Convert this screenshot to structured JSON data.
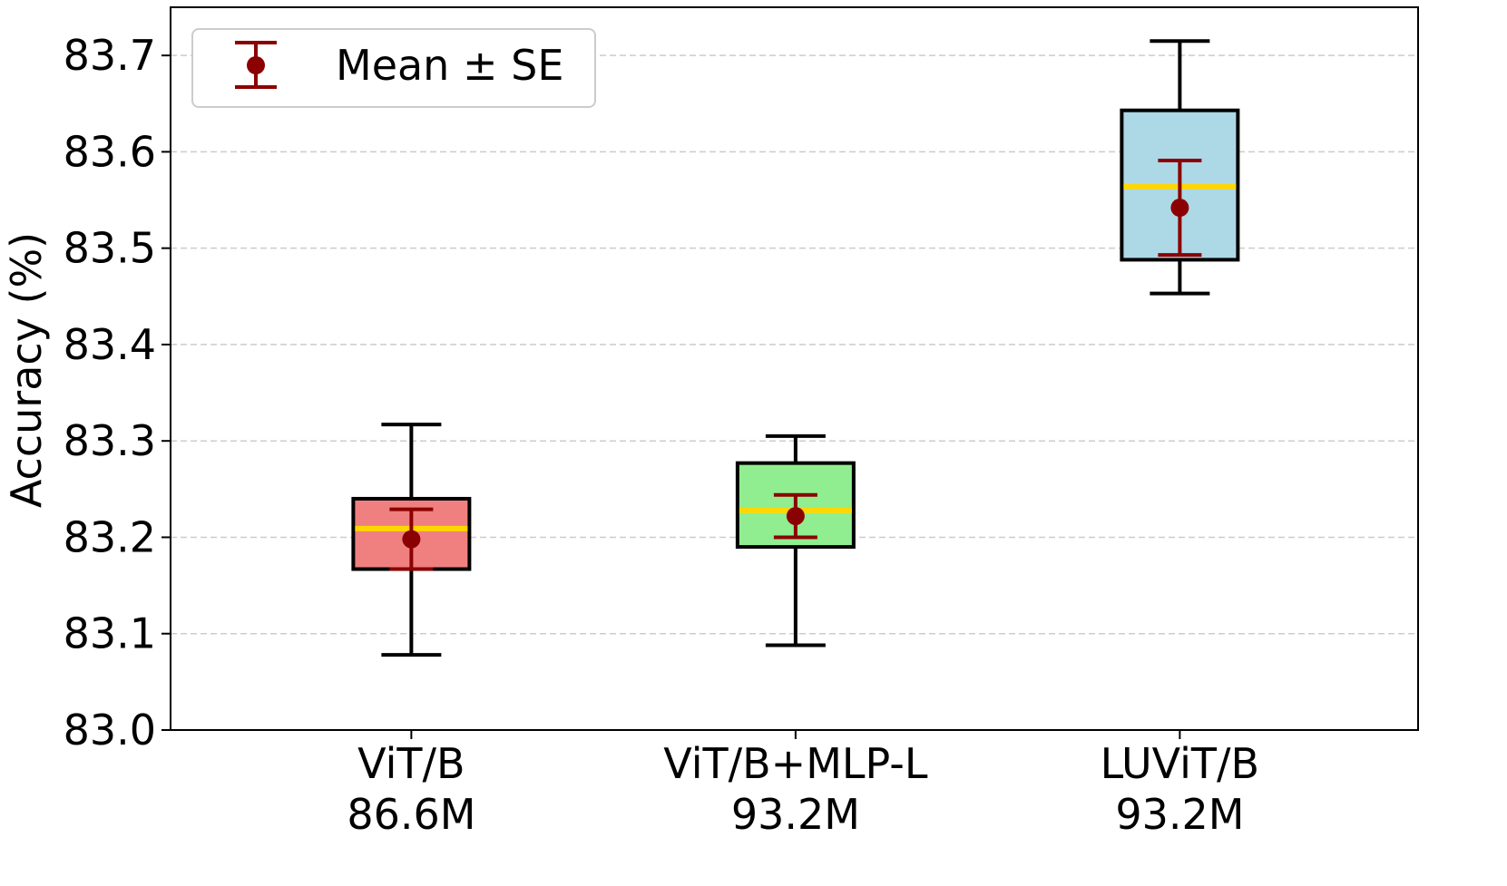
{
  "chart_data": {
    "type": "box",
    "title": "",
    "xlabel": "",
    "ylabel": "Accuracy (%)",
    "ylim": [
      83.0,
      83.75
    ],
    "yticks": [
      83.0,
      83.1,
      83.2,
      83.3,
      83.4,
      83.5,
      83.6,
      83.7
    ],
    "ytick_labels": [
      "83.0",
      "83.1",
      "83.2",
      "83.3",
      "83.4",
      "83.5",
      "83.6",
      "83.7"
    ],
    "grid": "y-dashed",
    "legend": {
      "placement": "top-left",
      "label": "Mean ± SE"
    },
    "colors": {
      "mean_marker": "#8b0000",
      "median_line": "#ffd700",
      "whisker": "#000000",
      "grid": "#cccccc"
    },
    "categories": [
      {
        "name": "ViT/B",
        "params": "86.6M",
        "fill": "#f08080",
        "whislo": 83.078,
        "q1": 83.167,
        "median": 83.209,
        "q3": 83.24,
        "whishi": 83.317,
        "mean": 83.198,
        "se": 0.031
      },
      {
        "name": "ViT/B+MLP-L",
        "params": "93.2M",
        "fill": "#90ee90",
        "whislo": 83.088,
        "q1": 83.19,
        "median": 83.228,
        "q3": 83.277,
        "whishi": 83.305,
        "mean": 83.222,
        "se": 0.022
      },
      {
        "name": "LUViT/B",
        "params": "93.2M",
        "fill": "#add8e6",
        "whislo": 83.453,
        "q1": 83.488,
        "median": 83.564,
        "q3": 83.643,
        "whishi": 83.715,
        "mean": 83.542,
        "se": 0.049
      }
    ]
  }
}
